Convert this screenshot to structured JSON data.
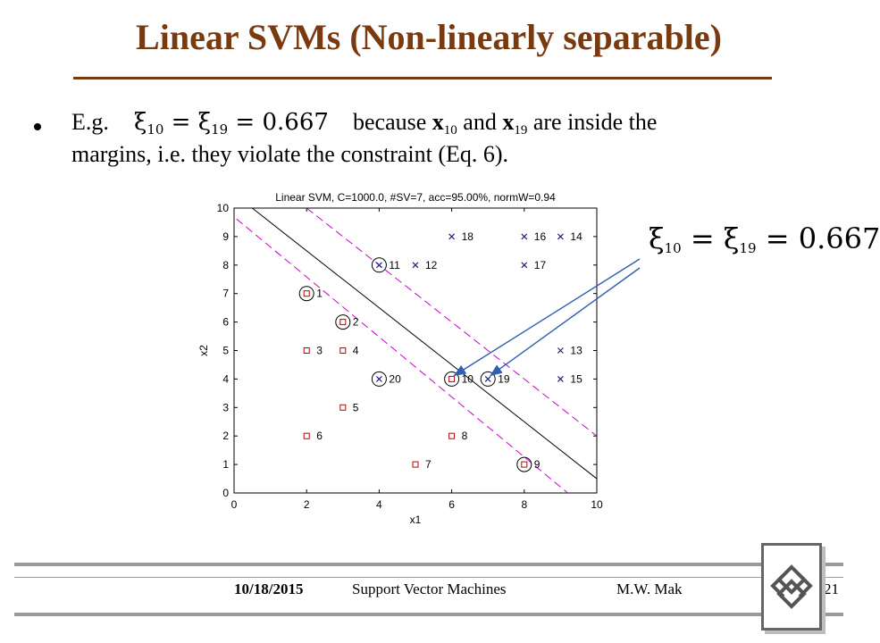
{
  "slide": {
    "title": "Linear SVMs (Non-linearly separable)",
    "bullet": {
      "eg": "E.g.",
      "formula": "ξ10 = ξ19 = 0.667",
      "because": "because",
      "x_sym": "x",
      "idx10": "10",
      "and": "and",
      "idx19": "19",
      "tail": "are inside the",
      "line2": "margins,  i.e. they violate the constraint  (Eq. 6)."
    },
    "callout_formula": "ξ10 = ξ19 = 0.667"
  },
  "colors": {
    "title": "#7a3a10",
    "class1": "#c00000",
    "class2": "#202080",
    "margin": "#cc00cc",
    "arrow": "#2f5fb0"
  },
  "chart_data": {
    "type": "scatter",
    "title": "Linear SVM, C=1000.0, #SV=7, acc=95.00%, normW=0.94",
    "xlabel": "x1",
    "ylabel": "x2",
    "xlim": [
      0,
      10
    ],
    "ylim": [
      0,
      10
    ],
    "xticks": [
      0,
      2,
      4,
      6,
      8,
      10
    ],
    "yticks": [
      0,
      1,
      2,
      3,
      4,
      5,
      6,
      7,
      8,
      9,
      10
    ],
    "series": [
      {
        "marker": "square",
        "points": [
          {
            "x": 2,
            "y": 7,
            "label": "1",
            "sv": true
          },
          {
            "x": 3,
            "y": 6,
            "label": "2",
            "sv": true
          },
          {
            "x": 2,
            "y": 5,
            "label": "3",
            "sv": false
          },
          {
            "x": 3,
            "y": 5,
            "label": "4",
            "sv": false
          },
          {
            "x": 3,
            "y": 3,
            "label": "5",
            "sv": false
          },
          {
            "x": 2,
            "y": 2,
            "label": "6",
            "sv": false
          },
          {
            "x": 5,
            "y": 1,
            "label": "7",
            "sv": false
          },
          {
            "x": 6,
            "y": 2,
            "label": "8",
            "sv": false
          },
          {
            "x": 8,
            "y": 1,
            "label": "9",
            "sv": true
          },
          {
            "x": 6,
            "y": 4,
            "label": "10",
            "sv": true
          }
        ]
      },
      {
        "marker": "x",
        "points": [
          {
            "x": 4,
            "y": 8,
            "label": "11",
            "sv": true
          },
          {
            "x": 5,
            "y": 8,
            "label": "12",
            "sv": false
          },
          {
            "x": 9,
            "y": 5,
            "label": "13",
            "sv": false
          },
          {
            "x": 9,
            "y": 9,
            "label": "14",
            "sv": false
          },
          {
            "x": 9,
            "y": 4,
            "label": "15",
            "sv": false
          },
          {
            "x": 8,
            "y": 9,
            "label": "16",
            "sv": false
          },
          {
            "x": 8,
            "y": 8,
            "label": "17",
            "sv": false
          },
          {
            "x": 6,
            "y": 9,
            "label": "18",
            "sv": false
          },
          {
            "x": 7,
            "y": 4,
            "label": "19",
            "sv": true
          },
          {
            "x": 4,
            "y": 4,
            "label": "20",
            "sv": true
          }
        ]
      }
    ],
    "lines": [
      {
        "role": "decision-boundary",
        "style": "solid",
        "from": [
          0.5,
          10
        ],
        "to": [
          10,
          0.5
        ]
      },
      {
        "role": "margin",
        "style": "dashed",
        "from": [
          2,
          10
        ],
        "to": [
          10,
          2
        ]
      },
      {
        "role": "margin",
        "style": "dashed",
        "from": [
          -0.2,
          9.9
        ],
        "to": [
          9.2,
          0
        ]
      }
    ],
    "callout_targets": [
      "10",
      "19"
    ]
  },
  "footer": {
    "date": "10/18/2015",
    "course": "Support Vector Machines",
    "author": "M.W. Mak",
    "page": "21"
  }
}
